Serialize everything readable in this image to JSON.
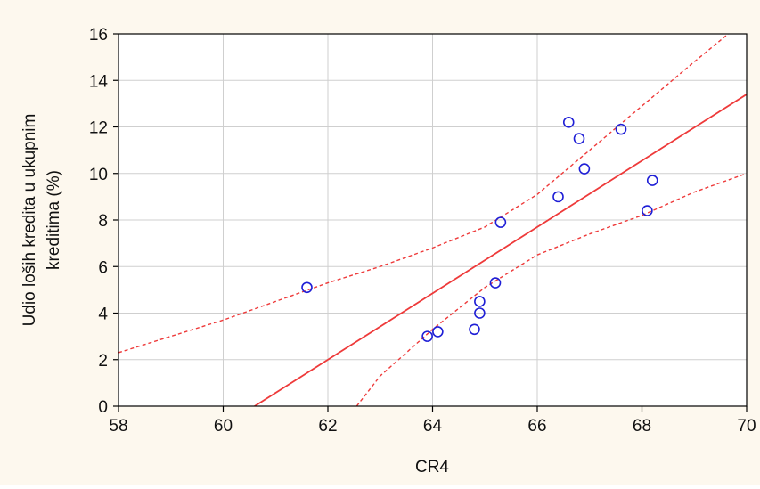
{
  "chart_data": {
    "type": "scatter",
    "title": "",
    "xlabel": "CR4",
    "ylabel_lines": [
      "Udio loših kredita u ukupnim",
      "kreditima (%)"
    ],
    "xlim": [
      58,
      70
    ],
    "ylim": [
      0,
      16
    ],
    "xticks": [
      58,
      60,
      62,
      64,
      66,
      68,
      70
    ],
    "yticks": [
      0,
      2,
      4,
      6,
      8,
      10,
      12,
      14,
      16
    ],
    "grid": true,
    "points": [
      {
        "x": 61.6,
        "y": 5.1
      },
      {
        "x": 63.9,
        "y": 3.0
      },
      {
        "x": 64.1,
        "y": 3.2
      },
      {
        "x": 64.8,
        "y": 3.3
      },
      {
        "x": 64.9,
        "y": 4.0
      },
      {
        "x": 64.9,
        "y": 4.5
      },
      {
        "x": 65.2,
        "y": 5.3
      },
      {
        "x": 65.3,
        "y": 7.9
      },
      {
        "x": 66.4,
        "y": 9.0
      },
      {
        "x": 66.6,
        "y": 12.2
      },
      {
        "x": 66.8,
        "y": 11.5
      },
      {
        "x": 66.9,
        "y": 10.2
      },
      {
        "x": 67.6,
        "y": 11.9
      },
      {
        "x": 68.1,
        "y": 8.4
      },
      {
        "x": 68.2,
        "y": 9.7
      }
    ],
    "regression_line": {
      "x": [
        60.6,
        70.0
      ],
      "y": [
        0.0,
        13.4
      ]
    },
    "confidence_upper": {
      "x": [
        58,
        59,
        60,
        61,
        62,
        63,
        64,
        65,
        66,
        67,
        68,
        69,
        69.65
      ],
      "y": [
        2.3,
        3.0,
        3.7,
        4.5,
        5.3,
        6.0,
        6.8,
        7.7,
        9.1,
        11.0,
        12.9,
        14.8,
        16.0
      ]
    },
    "confidence_lower": {
      "x": [
        62.55,
        63,
        64,
        65,
        66,
        67,
        68,
        69,
        70
      ],
      "y": [
        0.0,
        1.3,
        3.3,
        5.1,
        6.5,
        7.4,
        8.2,
        9.2,
        10.0
      ]
    },
    "colors": {
      "background": "#fdf8ee",
      "plot_background": "#ffffff",
      "grid": "#cfcfcf",
      "axis": "#000000",
      "points": "#1f1fd6",
      "regression": "#ee3a3a",
      "confidence": "#ee3a3a"
    }
  }
}
